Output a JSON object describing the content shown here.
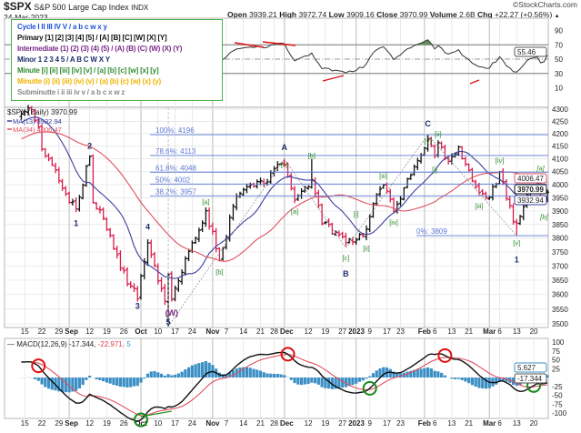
{
  "header": {
    "symbol": "$SPX",
    "name": "S&P 500 Large Cap Index",
    "exchange": "INDX",
    "date": "24-Mar-2023",
    "open_label": "Open",
    "open": "3939.21",
    "high_label": "High",
    "high": "3972.74",
    "low_label": "Low",
    "low": "3909.16",
    "close_label": "Close",
    "close": "3970.99",
    "volume_label": "Volume",
    "volume": "2.6B",
    "chg_label": "Chg",
    "chg": "+22.27 (+0.56%)",
    "chg_icon": "triangle-up-icon",
    "watermark": "©StockCharts.com"
  },
  "legend": [
    {
      "text": "Cycle I II III IV V / a b c w x y",
      "color": "#1a4fd6"
    },
    {
      "text": "Primary [1] [2] [3] [4] [5] / [A] [B] [C] [W] [X] [Y]",
      "color": "#111111"
    },
    {
      "text": "Intermediate (1) (2) (3) (4) (5) / (A) (B) (C) (W) (X) (Y)",
      "color": "#7b2a8a"
    },
    {
      "text": "Minor 1 2 3 4 5 / A B C W X Y",
      "color": "#1c2f6b"
    },
    {
      "text": "Minute [i] [ii] [iii] [iv] [v] / [a] [b] [c] [w] [x] [y]",
      "color": "#2e8b2e"
    },
    {
      "text": "Minutte (i) (ii) (iii) (iv) (v) / (a) (b) (c) (w) (x) (y)",
      "color": "#f0b400"
    },
    {
      "text": "Subminutte i ii iii iv v / a b c x w z",
      "color": "#8a8a8a"
    }
  ],
  "price_legend": {
    "title": "$SPX (Daily) 3970.99",
    "ma13": "MA(13) 3932.94",
    "ma34": "MA(34) 4006.47"
  },
  "macd_legend": {
    "label": "MACD(12,26,9)",
    "macd": "-17.344",
    "signal": "-22.971",
    "hist": "5"
  },
  "value_tags": {
    "rsi": "55.46",
    "ma34": "4006.47",
    "close": "3970.99",
    "ma13": "3932.94",
    "macd_hist": "5.627",
    "macd": "-17.344"
  },
  "colors": {
    "up": "#111111",
    "down": "#d81e4a",
    "ma13": "#3a3f9e",
    "ma34": "#e0505e",
    "rsi_ob": "#5e8f5a",
    "rsi_os": "#8a5550",
    "hist": "#3b8fc4",
    "fib": "#5a78d6",
    "red_circle": "#e01010",
    "green_circle": "#1a8a1a"
  },
  "chart_data": [
    {
      "type": "line",
      "title": "RSI",
      "y_ticks": [
        90,
        70,
        50,
        30,
        10
      ],
      "ylim": [
        0,
        100
      ],
      "levels": [
        70,
        50,
        30
      ],
      "last_value": 55.46
    },
    {
      "type": "ohlc",
      "title": "$SPX (Daily) 3970.99",
      "y_scale": "log",
      "ylim": [
        3480,
        4320
      ],
      "y_ticks": [
        4300,
        4250,
        4200,
        4150,
        4100,
        4050,
        4000,
        3950,
        3900,
        3850,
        3800,
        3750,
        3700,
        3650,
        3600,
        3550,
        3500
      ],
      "grid": true,
      "series": [
        {
          "name": "MA(13)",
          "last": 3932.94
        },
        {
          "name": "MA(34)",
          "last": 4006.47
        }
      ],
      "pivots": [
        [
          "2022-08-12",
          4280
        ],
        [
          "2022-08-16",
          4305
        ],
        [
          "2022-08-19",
          4228
        ],
        [
          "2022-08-22",
          4138
        ],
        [
          "2022-08-26",
          4057
        ],
        [
          "2022-08-30",
          3986
        ],
        [
          "2022-09-06",
          3908
        ],
        [
          "2022-09-12",
          4110
        ],
        [
          "2022-09-13",
          3932
        ],
        [
          "2022-09-16",
          3873
        ],
        [
          "2022-09-23",
          3693
        ],
        [
          "2022-09-30",
          3585
        ],
        [
          "2022-10-05",
          3783
        ],
        [
          "2022-10-12",
          3577
        ],
        [
          "2022-10-13",
          3669
        ],
        [
          "2022-10-14",
          3583
        ],
        [
          "2022-10-21",
          3752
        ],
        [
          "2022-10-28",
          3901
        ],
        [
          "2022-11-03",
          3720
        ],
        [
          "2022-11-10",
          3956
        ],
        [
          "2022-11-15",
          3992
        ],
        [
          "2022-11-22",
          4003
        ],
        [
          "2022-11-30",
          4080
        ],
        [
          "2022-12-01",
          4076
        ],
        [
          "2022-12-06",
          3941
        ],
        [
          "2022-12-13",
          4019
        ],
        [
          "2022-12-16",
          3852
        ],
        [
          "2022-12-22",
          3822
        ],
        [
          "2022-12-28",
          3783
        ],
        [
          "2023-01-05",
          3808
        ],
        [
          "2023-01-12",
          3983
        ],
        [
          "2023-01-13",
          3999
        ],
        [
          "2023-01-19",
          3898
        ],
        [
          "2023-01-27",
          4070
        ],
        [
          "2023-02-02",
          4179
        ],
        [
          "2023-02-06",
          4111
        ],
        [
          "2023-02-07",
          4164
        ],
        [
          "2023-02-10",
          4090
        ],
        [
          "2023-02-15",
          4147
        ],
        [
          "2023-02-17",
          4079
        ],
        [
          "2023-02-24",
          3970
        ],
        [
          "2023-03-01",
          3951
        ],
        [
          "2023-03-06",
          4048
        ],
        [
          "2023-03-10",
          3861
        ],
        [
          "2023-03-13",
          3855
        ],
        [
          "2023-03-16",
          3960
        ],
        [
          "2023-03-21",
          4002
        ],
        [
          "2023-03-22",
          3937
        ],
        [
          "2023-03-23",
          3948
        ],
        [
          "2023-03-24",
          3970.99
        ]
      ],
      "fib_levels": [
        {
          "label": "100%: 4196",
          "value": 4196
        },
        {
          "label": "78.6%: 4113",
          "value": 4113
        },
        {
          "label": "61.8%: 4048",
          "value": 4048
        },
        {
          "label": "50%: 4002",
          "value": 4002
        },
        {
          "label": "38.2%: 3957",
          "value": 3957
        },
        {
          "label": "0%: 3809",
          "value": 3809
        }
      ],
      "wave_labels": [
        {
          "text": "2",
          "date": "2022-09-12",
          "price": 4150,
          "style": "minor"
        },
        {
          "text": "1",
          "date": "2022-09-06",
          "price": 3855,
          "style": "minor"
        },
        {
          "text": "3",
          "date": "2022-09-30",
          "price": 3560,
          "style": "minor"
        },
        {
          "text": "4",
          "date": "2022-10-05",
          "price": 3840,
          "style": "minor"
        },
        {
          "text": "5",
          "date": "2022-10-13",
          "price": 3465,
          "style": "minor"
        },
        {
          "text": "(W)",
          "date": "2022-10-14",
          "price": 3435,
          "style": "intermediate"
        },
        {
          "text": "[a]",
          "date": "2022-10-28",
          "price": 3935,
          "style": "minute"
        },
        {
          "text": "[b]",
          "date": "2022-11-03",
          "price": 3680,
          "style": "minute"
        },
        {
          "text": "A",
          "date": "2022-12-01",
          "price": 4145,
          "style": "minor"
        },
        {
          "text": "[c]",
          "date": "2022-12-01",
          "price": 4115,
          "style": "minute"
        },
        {
          "text": "[a]",
          "date": "2022-12-06",
          "price": 3900,
          "style": "minute"
        },
        {
          "text": "[b]",
          "date": "2022-12-13",
          "price": 4115,
          "style": "minute"
        },
        {
          "text": "[c]",
          "date": "2022-12-28",
          "price": 3730,
          "style": "minute"
        },
        {
          "text": "B",
          "date": "2022-12-28",
          "price": 3705,
          "style": "minor"
        },
        {
          "text": "[i]",
          "date": "2023-01-03",
          "price": 3890,
          "style": "minute"
        },
        {
          "text": "[ii]",
          "date": "2023-01-06",
          "price": 3765,
          "style": "minute"
        },
        {
          "text": "[iii]",
          "date": "2023-01-13",
          "price": 4035,
          "style": "minute"
        },
        {
          "text": "[iv]",
          "date": "2023-01-19",
          "price": 3860,
          "style": "minute"
        },
        {
          "text": "C",
          "date": "2023-02-02",
          "price": 4240,
          "style": "minor"
        },
        {
          "text": "[v]",
          "date": "2023-02-02",
          "price": 4210,
          "style": "minute"
        },
        {
          "text": "[ii]",
          "date": "2023-02-07",
          "price": 4200,
          "style": "minute"
        },
        {
          "text": "[i]",
          "date": "2023-02-06",
          "price": 4060,
          "style": "minute"
        },
        {
          "text": "[iii]",
          "date": "2023-02-24",
          "price": 3920,
          "style": "minute"
        },
        {
          "text": "[iv]",
          "date": "2023-03-06",
          "price": 4095,
          "style": "minute"
        },
        {
          "text": "[v]",
          "date": "2023-03-13",
          "price": 3785,
          "style": "minute"
        },
        {
          "text": "1",
          "date": "2023-03-13",
          "price": 3755,
          "style": "minor"
        },
        {
          "text": "[a]",
          "date": "2023-03-22",
          "price": 4065,
          "style": "minute-italic"
        },
        {
          "text": "[b]",
          "date": "2023-03-23",
          "price": 3880,
          "style": "minute-italic"
        }
      ],
      "wave_lines": [
        [
          [
            "2022-10-13",
            3491
          ],
          [
            "2022-12-01",
            4100
          ]
        ],
        [
          [
            "2022-12-01",
            4100
          ],
          [
            "2022-12-28",
            3764
          ]
        ],
        [
          [
            "2022-12-28",
            3764
          ],
          [
            "2023-02-02",
            4195
          ]
        ],
        [
          [
            "2023-02-02",
            4195
          ],
          [
            "2023-03-13",
            3808
          ]
        ]
      ]
    },
    {
      "type": "macd",
      "title": "MACD(12,26,9) -17.344, -22.971, 5",
      "ylim": [
        -120,
        110
      ],
      "y_ticks": [
        100,
        75,
        50,
        25,
        0,
        -25,
        -50,
        -75,
        -100
      ],
      "tick_labels": [
        "100",
        "75",
        "50",
        "25",
        "",
        "-25",
        "-50",
        "-75",
        "-100"
      ],
      "last": {
        "macd": -17.344,
        "signal": -22.971,
        "hist": 5.627
      },
      "sell_markers": [
        "2022-08-19",
        "2022-12-02",
        "2023-02-09"
      ],
      "buy_markers": [
        "2022-10-03",
        "2023-01-09",
        "2023-03-20"
      ]
    }
  ],
  "x_ticks": [
    {
      "label": "15",
      "date": "2022-08-15",
      "bold": false
    },
    {
      "label": "22",
      "date": "2022-08-22",
      "bold": false
    },
    {
      "label": "29",
      "date": "2022-08-29",
      "bold": false
    },
    {
      "label": "Sep",
      "date": "2022-09-01",
      "bold": true
    },
    {
      "label": "12",
      "date": "2022-09-12",
      "bold": false
    },
    {
      "label": "19",
      "date": "2022-09-19",
      "bold": false
    },
    {
      "label": "26",
      "date": "2022-09-26",
      "bold": false
    },
    {
      "label": "Oct",
      "date": "2022-10-03",
      "bold": true
    },
    {
      "label": "10",
      "date": "2022-10-10",
      "bold": false
    },
    {
      "label": "17",
      "date": "2022-10-17",
      "bold": false
    },
    {
      "label": "24",
      "date": "2022-10-24",
      "bold": false
    },
    {
      "label": "Nov",
      "date": "2022-11-01",
      "bold": true
    },
    {
      "label": "7",
      "date": "2022-11-07",
      "bold": false
    },
    {
      "label": "14",
      "date": "2022-11-14",
      "bold": false
    },
    {
      "label": "21",
      "date": "2022-11-21",
      "bold": false
    },
    {
      "label": "28",
      "date": "2022-11-28",
      "bold": false
    },
    {
      "label": "Dec",
      "date": "2022-12-01",
      "bold": true
    },
    {
      "label": "12",
      "date": "2022-12-12",
      "bold": false
    },
    {
      "label": "19",
      "date": "2022-12-19",
      "bold": false
    },
    {
      "label": "27",
      "date": "2022-12-27",
      "bold": false
    },
    {
      "label": "2023",
      "date": "2023-01-03",
      "bold": true
    },
    {
      "label": "9",
      "date": "2023-01-09",
      "bold": false
    },
    {
      "label": "17",
      "date": "2023-01-17",
      "bold": false
    },
    {
      "label": "23",
      "date": "2023-01-23",
      "bold": false
    },
    {
      "label": "Feb",
      "date": "2023-02-01",
      "bold": true
    },
    {
      "label": "6",
      "date": "2023-02-06",
      "bold": false
    },
    {
      "label": "13",
      "date": "2023-02-13",
      "bold": false
    },
    {
      "label": "21",
      "date": "2023-02-21",
      "bold": false
    },
    {
      "label": "Mar",
      "date": "2023-03-01",
      "bold": true
    },
    {
      "label": "6",
      "date": "2023-03-06",
      "bold": false
    },
    {
      "label": "13",
      "date": "2023-03-13",
      "bold": false
    },
    {
      "label": "20",
      "date": "2023-03-20",
      "bold": false
    }
  ]
}
